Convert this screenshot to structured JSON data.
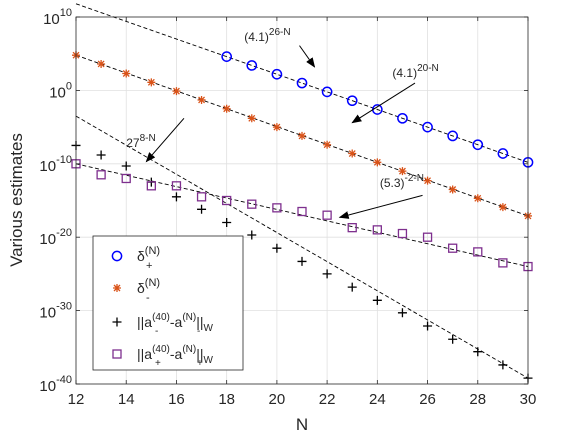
{
  "chart_data": {
    "type": "scatter",
    "xlabel": "N",
    "ylabel": "Various estimates",
    "xlim": [
      12,
      30
    ],
    "ylim_log10": [
      -40,
      10
    ],
    "yscale": "log",
    "grid": true,
    "legend_position": "bottom-left",
    "x_ticks": [
      12,
      14,
      16,
      18,
      20,
      22,
      24,
      26,
      28,
      30
    ],
    "y_ticks_log10": [
      -40,
      -30,
      -20,
      -10,
      0,
      10
    ],
    "series": [
      {
        "name": "delta_plus",
        "marker": "circle",
        "color": "#0000ff",
        "x": [
          18,
          19,
          20,
          21,
          22,
          23,
          24,
          25,
          26,
          27,
          28,
          29,
          30
        ],
        "log10_y": [
          4.6,
          3.4,
          2.2,
          1.0,
          -0.2,
          -1.4,
          -2.6,
          -3.8,
          -5.0,
          -6.2,
          -7.4,
          -8.6,
          -9.8
        ]
      },
      {
        "name": "delta_minus",
        "marker": "asterisk",
        "color": "#d95319",
        "x": [
          12,
          13,
          14,
          15,
          16,
          17,
          18,
          19,
          20,
          21,
          22,
          23,
          24,
          25,
          26,
          27,
          28,
          29,
          30
        ],
        "log10_y": [
          4.8,
          3.6,
          2.3,
          1.1,
          -0.1,
          -1.3,
          -2.5,
          -3.8,
          -5.0,
          -6.2,
          -7.4,
          -8.6,
          -9.8,
          -11.0,
          -12.3,
          -13.5,
          -14.7,
          -15.9,
          -17.1
        ]
      },
      {
        "name": "a_minus_norm",
        "marker": "plus",
        "color": "#000000",
        "x": [
          12,
          13,
          14,
          15,
          16,
          17,
          18,
          19,
          20,
          21,
          22,
          23,
          24,
          25,
          26,
          27,
          28,
          29,
          30
        ],
        "log10_y": [
          -7.5,
          -8.8,
          -10.3,
          -12.5,
          -14.5,
          -16.2,
          -18.0,
          -19.7,
          -21.5,
          -23.3,
          -25.0,
          -26.8,
          -28.6,
          -30.3,
          -32.1,
          -33.9,
          -35.6,
          -37.4,
          -39.2
        ]
      },
      {
        "name": "a_plus_norm",
        "marker": "square",
        "color": "#7e2f8e",
        "x": [
          12,
          13,
          14,
          15,
          16,
          17,
          18,
          19,
          20,
          21,
          22,
          23,
          24,
          25,
          26,
          27,
          28,
          29,
          30
        ],
        "log10_y": [
          -10.0,
          -11.5,
          -12.0,
          -13.0,
          -13.0,
          -14.5,
          -15.0,
          -15.5,
          -16.0,
          -16.5,
          -17.0,
          -18.7,
          -19.0,
          -19.5,
          -20.0,
          -21.5,
          -22.0,
          -23.5,
          -24.0
        ]
      }
    ],
    "fit_lines": [
      {
        "name": "fit_delta_plus",
        "x": [
          12,
          30
        ],
        "log10_y": [
          11.8,
          -9.8
        ]
      },
      {
        "name": "fit_delta_minus",
        "x": [
          12,
          30
        ],
        "log10_y": [
          4.8,
          -17.1
        ]
      },
      {
        "name": "fit_a_minus",
        "x": [
          12,
          30
        ],
        "log10_y": [
          -3.5,
          -39.2
        ]
      },
      {
        "name": "fit_a_plus",
        "x": [
          12,
          30
        ],
        "log10_y": [
          -10.0,
          -24.0
        ]
      }
    ],
    "legend": [
      {
        "series": "delta_plus",
        "base": "δ",
        "sup": "(N)",
        "sub": "+"
      },
      {
        "series": "delta_minus",
        "base": "δ",
        "sup": "(N)",
        "sub": "-"
      },
      {
        "series": "a_minus_norm",
        "lead": "||a",
        "sub1": "-",
        "sup1": "(40)",
        "mid": "-a",
        "sub2": "-",
        "sup2": "(N)",
        "tail": "||",
        "tailsub": "W"
      },
      {
        "series": "a_plus_norm",
        "lead": "||a",
        "sub1": "+",
        "sup1": "(40)",
        "mid": "-a",
        "sub2": "+",
        "sup2": "(N)",
        "tail": "||",
        "tailsub": "W"
      }
    ],
    "annotations": [
      {
        "base": "(4.1)",
        "sup": "26-N",
        "text_x": 18.7,
        "text_log10": 7.3,
        "arrow_from_x": 20.9,
        "arrow_from_log10": 6.1,
        "arrow_to_x": 21.5,
        "arrow_to_log10": 3.2
      },
      {
        "base": "(4.1)",
        "sup": "20-N",
        "text_x": 24.6,
        "text_log10": 2.4,
        "arrow_from_x": 25.5,
        "arrow_from_log10": 1.0,
        "arrow_to_x": 23.0,
        "arrow_to_log10": -4.4
      },
      {
        "base": "27",
        "sup": "8-N",
        "text_x": 14.0,
        "text_log10": -7.2,
        "arrow_from_x": 16.3,
        "arrow_from_log10": -3.8,
        "arrow_to_x": 14.8,
        "arrow_to_log10": -9.7
      },
      {
        "base": "(5.3)",
        "sup": "-2-N",
        "text_x": 24.1,
        "text_log10": -12.6,
        "arrow_from_x": 25.8,
        "arrow_from_log10": -14.3,
        "arrow_to_x": 22.5,
        "arrow_to_log10": -17.3
      }
    ]
  }
}
